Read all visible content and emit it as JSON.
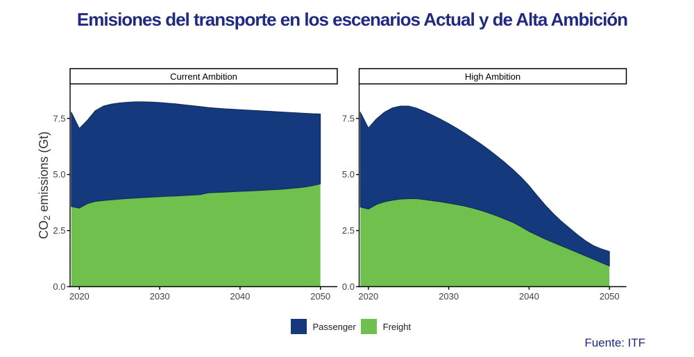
{
  "title": "Emisiones del transporte en los escenarios Actual y de Alta Ambición",
  "source": {
    "label": "Fuente:",
    "value": "ITF"
  },
  "colors": {
    "passenger": "#15397D",
    "freight": "#6FC04D",
    "passenger_edge": "#0F2B55",
    "title_text": "#1F2A80",
    "source_text": "#1F2A80",
    "axis_line": "#000000",
    "tick_text": "#404040",
    "axis_title_text": "#333333",
    "panel_border": "#000000",
    "panel_title_text": "#000000"
  },
  "legend": [
    {
      "label": "Passenger",
      "color": "#15397D"
    },
    {
      "label": "Freight",
      "color": "#6FC04D"
    }
  ],
  "chart_data": {
    "type": "area",
    "stacked": true,
    "title": "Emisiones del transporte en los escenarios Actual y de Alta Ambición",
    "xlabel": "",
    "ylabel": "CO2 emissions (Gt)",
    "ylabel_parts": [
      "CO",
      "2",
      " emissions (Gt)"
    ],
    "legend_position": "bottom",
    "grid": false,
    "x": [
      2019,
      2020,
      2021,
      2022,
      2023,
      2024,
      2025,
      2026,
      2027,
      2028,
      2029,
      2030,
      2031,
      2032,
      2033,
      2034,
      2035,
      2036,
      2037,
      2038,
      2039,
      2040,
      2041,
      2042,
      2043,
      2044,
      2045,
      2046,
      2047,
      2048,
      2049,
      2050
    ],
    "x_ticks": [
      2020,
      2030,
      2040,
      2050
    ],
    "x_tick_labels": [
      "2020",
      "2030",
      "2040",
      "2050"
    ],
    "y_ticks": [
      0,
      2.5,
      5,
      7.5
    ],
    "y_tick_labels": [
      "0.0",
      "2.5",
      "5.0",
      "7.5"
    ],
    "xlim": [
      2018.85,
      2052.1
    ],
    "ylim": [
      0,
      9.04
    ],
    "series_names": [
      "Passenger",
      "Freight"
    ],
    "panels": [
      {
        "title": "Current Ambition",
        "freight": [
          3.57,
          3.5,
          3.7,
          3.8,
          3.84,
          3.87,
          3.9,
          3.93,
          3.95,
          3.97,
          3.99,
          4.01,
          4.03,
          4.04,
          4.06,
          4.08,
          4.1,
          4.18,
          4.2,
          4.21,
          4.23,
          4.25,
          4.26,
          4.28,
          4.3,
          4.32,
          4.34,
          4.37,
          4.4,
          4.44,
          4.5,
          4.58
        ],
        "passenger": [
          4.21,
          3.55,
          3.72,
          4.05,
          4.21,
          4.27,
          4.29,
          4.29,
          4.29,
          4.27,
          4.24,
          4.2,
          4.15,
          4.11,
          4.05,
          3.99,
          3.93,
          3.81,
          3.76,
          3.72,
          3.68,
          3.64,
          3.61,
          3.57,
          3.53,
          3.49,
          3.45,
          3.4,
          3.35,
          3.29,
          3.21,
          3.12
        ]
      },
      {
        "title": "High Ambition",
        "freight": [
          3.55,
          3.46,
          3.66,
          3.78,
          3.85,
          3.9,
          3.92,
          3.92,
          3.88,
          3.83,
          3.78,
          3.72,
          3.66,
          3.59,
          3.5,
          3.4,
          3.28,
          3.15,
          3.01,
          2.86,
          2.67,
          2.46,
          2.29,
          2.12,
          1.97,
          1.82,
          1.67,
          1.52,
          1.37,
          1.22,
          1.07,
          0.92
        ],
        "passenger": [
          4.23,
          3.61,
          3.82,
          4.0,
          4.12,
          4.15,
          4.13,
          4.04,
          3.93,
          3.81,
          3.68,
          3.55,
          3.4,
          3.25,
          3.1,
          2.96,
          2.82,
          2.67,
          2.52,
          2.36,
          2.21,
          2.04,
          1.77,
          1.52,
          1.29,
          1.1,
          0.95,
          0.8,
          0.68,
          0.61,
          0.61,
          0.65
        ]
      }
    ]
  }
}
